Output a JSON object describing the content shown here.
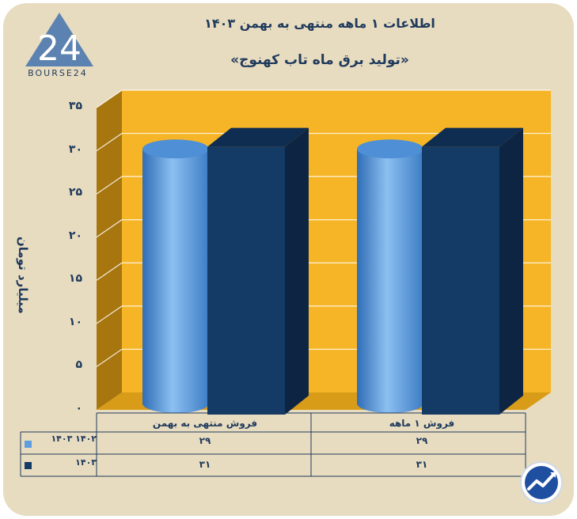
{
  "header": {
    "title": "اطلاعات ۱ ماهه منتهی به بهمن ۱۴۰۳",
    "subtitle": "«تولید برق ماه تاب کهنوج»",
    "logo_text": "BOURSE24",
    "logo_number": "24"
  },
  "colors": {
    "background": "#e8dcc0",
    "plot_back": "#f6b526",
    "plot_side": "#a8760f",
    "plot_floor": "#f6b526",
    "series_1402": "#5e9ee0",
    "series_1403": "#143a66",
    "text": "#1f3a5c"
  },
  "chart_data": {
    "type": "bar",
    "title": "«تولید برق ماه تاب کهنوج»",
    "ylabel": "میلیارد تومان",
    "xlabel": "",
    "ylim": [
      0,
      35
    ],
    "yticks": [
      "۰",
      "۵",
      "۱۰",
      "۱۵",
      "۲۰",
      "۲۵",
      "۳۰",
      "۳۵"
    ],
    "categories": [
      "فروش منتهی به  بهمن",
      "فروش ۱ ماهه"
    ],
    "series": [
      {
        "name": "۱۴۰۲ ۱۴۰۳",
        "values": [
          29,
          29
        ],
        "labels": [
          "۲۹",
          "۲۹"
        ],
        "shape": "cylinder"
      },
      {
        "name": "۱۴۰۳",
        "values": [
          31,
          31
        ],
        "labels": [
          "۳۱",
          "۳۱"
        ],
        "shape": "box"
      }
    ],
    "grid": true,
    "legend": "table-bottom"
  }
}
